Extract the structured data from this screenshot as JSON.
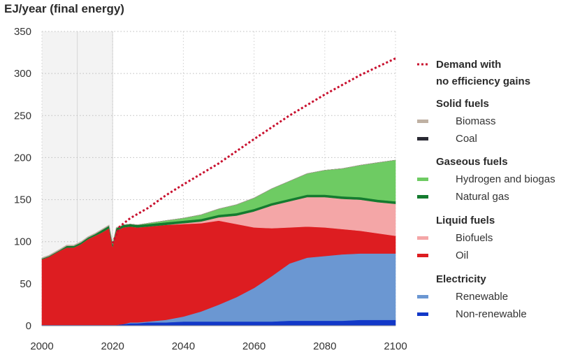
{
  "chart_data": {
    "type": "area",
    "title": "",
    "ylabel": "EJ/year (final energy)",
    "xlabel": "",
    "xlim": [
      2000,
      2100
    ],
    "ylim": [
      0,
      350
    ],
    "xticks": [
      "2000",
      "2020",
      "2040",
      "2060",
      "2080",
      "2100"
    ],
    "yticks": [
      "0",
      "50",
      "100",
      "150",
      "200",
      "250",
      "300",
      "350"
    ],
    "x": [
      2000,
      2002,
      2005,
      2007,
      2009,
      2011,
      2013,
      2015,
      2017,
      2019,
      2020,
      2021,
      2023,
      2025,
      2027,
      2030,
      2035,
      2040,
      2045,
      2050,
      2055,
      2060,
      2065,
      2070,
      2075,
      2080,
      2085,
      2090,
      2095,
      2100
    ],
    "historical_shading": {
      "from": 2000,
      "to": 2020,
      "divider": 2010
    },
    "grid": "dotted",
    "legend_position": "right",
    "series": [
      {
        "name": "Non-renewable",
        "group": "Electricity",
        "color": "#1238c8",
        "values": [
          1,
          1,
          1,
          1,
          1,
          1,
          1,
          1,
          1,
          1,
          1,
          1,
          2,
          3,
          3,
          4,
          4,
          5,
          5,
          5,
          5,
          5,
          5,
          6,
          6,
          6,
          6,
          7,
          7,
          7
        ]
      },
      {
        "name": "Renewable",
        "group": "Electricity",
        "color": "#6b97d2",
        "values": [
          0,
          0,
          0,
          0,
          0,
          0,
          0,
          0,
          0,
          0,
          0,
          0,
          0,
          1,
          1,
          1,
          3,
          6,
          12,
          20,
          29,
          40,
          54,
          68,
          75,
          77,
          79,
          79,
          79,
          79
        ]
      },
      {
        "name": "Oil",
        "group": "Liquid fuels",
        "color": "#dd1d21",
        "values": [
          78,
          81,
          88,
          92,
          92,
          96,
          102,
          106,
          110,
          115,
          93,
          112,
          115,
          114,
          113,
          113,
          113,
          110,
          105,
          100,
          87,
          72,
          57,
          43,
          37,
          34,
          30,
          27,
          24,
          21
        ]
      },
      {
        "name": "Biofuels",
        "group": "Liquid fuels",
        "color": "#f4a6a7",
        "values": [
          0,
          0,
          0,
          0,
          0,
          0,
          0,
          0,
          0,
          0,
          0,
          0,
          0,
          0,
          0,
          0,
          0,
          1,
          2,
          4,
          10,
          19,
          27,
          31,
          35,
          36,
          36,
          37,
          37,
          38
        ]
      },
      {
        "name": "Natural gas",
        "group": "Gaseous fuels",
        "color": "#147b2f",
        "values": [
          1,
          1,
          1,
          2,
          2,
          2,
          2,
          2,
          3,
          3,
          3,
          3,
          3,
          3,
          3,
          3,
          3,
          3,
          3,
          3,
          3,
          3,
          3,
          3,
          3,
          3,
          3,
          3,
          3,
          3
        ]
      },
      {
        "name": "Hydrogen and biogas",
        "group": "Gaseous fuels",
        "color": "#6ecb63",
        "values": [
          0,
          0,
          0,
          0,
          0,
          0,
          0,
          0,
          0,
          0,
          0,
          0,
          0,
          0,
          0,
          1,
          2,
          3,
          5,
          7,
          10,
          13,
          17,
          21,
          25,
          29,
          33,
          38,
          44,
          49
        ]
      },
      {
        "name": "Coal",
        "group": "Solid fuels",
        "color": "#2a2a33",
        "values": [
          0,
          0,
          0,
          0,
          0,
          0,
          0,
          0,
          0,
          0,
          0,
          0,
          0,
          0,
          0,
          0,
          0,
          0,
          0,
          0,
          0,
          0,
          0,
          0,
          0,
          0,
          0,
          0,
          0,
          0
        ]
      },
      {
        "name": "Biomass",
        "group": "Solid fuels",
        "color": "#bfb1a3",
        "values": [
          1,
          1,
          1,
          1,
          1,
          1,
          1,
          1,
          1,
          1,
          1,
          1,
          0,
          0,
          0,
          0,
          0,
          0,
          0,
          0,
          0,
          0,
          0,
          0,
          0,
          0,
          0,
          0,
          0,
          0
        ]
      }
    ],
    "demand_line": {
      "name": "Demand with no efficiency gains",
      "color": "#c8102e",
      "style": "dotted",
      "x": [
        2020,
        2022,
        2025,
        2030,
        2035,
        2040,
        2050,
        2060,
        2070,
        2080,
        2090,
        2100
      ],
      "values": [
        98,
        118,
        128,
        140,
        155,
        168,
        193,
        222,
        250,
        275,
        298,
        318
      ]
    }
  },
  "legend": {
    "demand_label_line1": "Demand with",
    "demand_label_line2": "no efficiency gains",
    "groups": [
      {
        "heading": "Solid fuels",
        "items": [
          {
            "label": "Biomass",
            "color": "#bfb1a3"
          },
          {
            "label": "Coal",
            "color": "#2a2a33"
          }
        ]
      },
      {
        "heading": "Gaseous fuels",
        "items": [
          {
            "label": "Hydrogen and biogas",
            "color": "#6ecb63"
          },
          {
            "label": "Natural gas",
            "color": "#147b2f"
          }
        ]
      },
      {
        "heading": "Liquid fuels",
        "items": [
          {
            "label": "Biofuels",
            "color": "#f4a6a7"
          },
          {
            "label": "Oil",
            "color": "#dd1d21"
          }
        ]
      },
      {
        "heading": "Electricity",
        "items": [
          {
            "label": "Renewable",
            "color": "#6b97d2"
          },
          {
            "label": "Non-renewable",
            "color": "#1238c8"
          }
        ]
      }
    ]
  }
}
